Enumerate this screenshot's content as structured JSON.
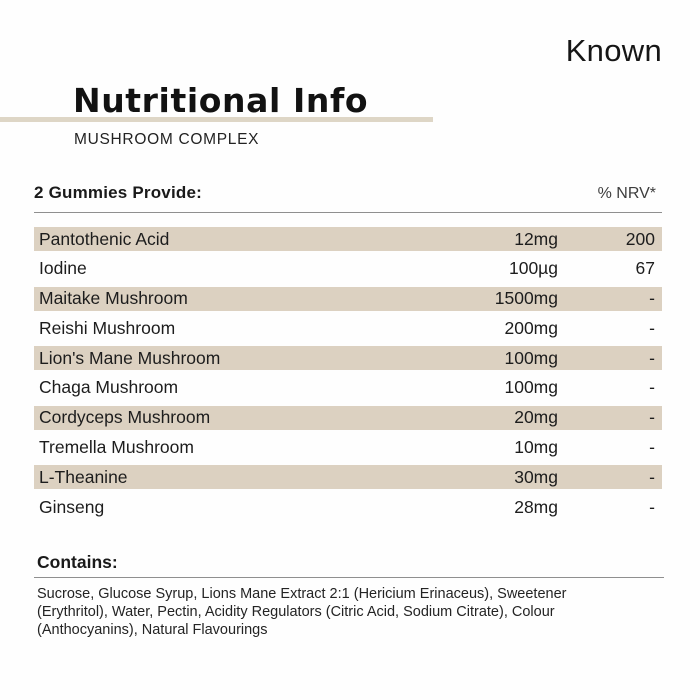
{
  "brand": "Known",
  "header": {
    "title": "Nutritional Info",
    "subtitle": "MUSHROOM COMPLEX"
  },
  "table": {
    "serving_label": "2 Gummies Provide:",
    "nrv_label": "% NRV*",
    "rows": [
      {
        "name": "Pantothenic Acid",
        "amount": "12mg",
        "nrv": "200"
      },
      {
        "name": "Iodine",
        "amount": "100µg",
        "nrv": "67"
      },
      {
        "name": "Maitake Mushroom",
        "amount": "1500mg",
        "nrv": "-"
      },
      {
        "name": "Reishi Mushroom",
        "amount": "200mg",
        "nrv": "-"
      },
      {
        "name": "Lion's Mane Mushroom",
        "amount": "100mg",
        "nrv": "-"
      },
      {
        "name": "Chaga Mushroom",
        "amount": "100mg",
        "nrv": "-"
      },
      {
        "name": "Cordyceps Mushroom",
        "amount": "20mg",
        "nrv": "-"
      },
      {
        "name": "Tremella Mushroom",
        "amount": "10mg",
        "nrv": "-"
      },
      {
        "name": "L-Theanine",
        "amount": "30mg",
        "nrv": "-"
      },
      {
        "name": "Ginseng",
        "amount": "28mg",
        "nrv": "-"
      }
    ]
  },
  "contains": {
    "label": "Contains:",
    "lines": [
      "Sucrose, Glucose Syrup, Lions Mane Extract 2:1 (Hericium Erinaceus), Sweetener",
      "(Erythritol), Water, Pectin, Acidity Regulators (Citric Acid, Sodium Citrate), Colour",
      "(Anthocyanins), Natural Flavourings"
    ]
  },
  "colors": {
    "row_highlight": "#dcd1c1",
    "title_underline": "#ded6c6"
  }
}
